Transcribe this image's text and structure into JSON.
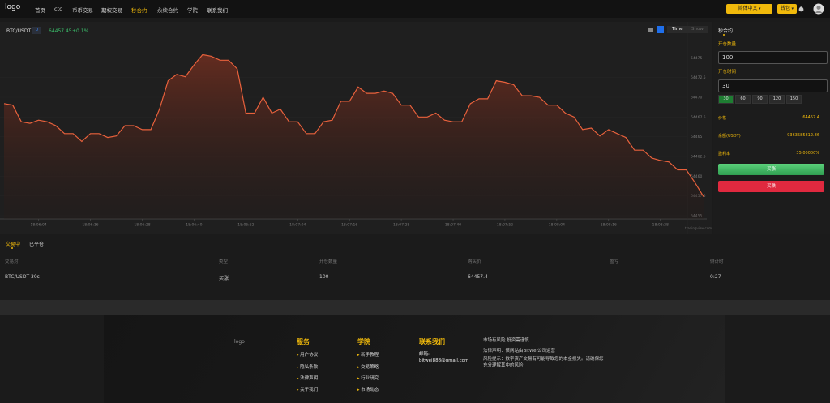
{
  "nav": {
    "logo": "logo",
    "items": [
      "首页",
      "ctc",
      "币币交易",
      "期权交易",
      "秒合约",
      "永续合约",
      "学院",
      "联系我们"
    ],
    "language": "简体中文",
    "wallet": "钱包"
  },
  "chart_data": {
    "type": "line",
    "symbol": "BTC/USDT",
    "badge": "0",
    "last_price": "64457.45",
    "change": "+0.1%",
    "mode_buttons": [
      "Time",
      "Show"
    ],
    "watermark": "tradingview.com",
    "color": "#e8613c",
    "grid": true,
    "categories": [
      null,
      null,
      null,
      null,
      "18:06:04",
      null,
      null,
      null,
      null,
      null,
      "18:06:16",
      null,
      null,
      null,
      null,
      null,
      "18:06:28",
      null,
      null,
      null,
      null,
      null,
      "18:06:40",
      null,
      null,
      null,
      null,
      null,
      "18:06:52",
      null,
      null,
      null,
      null,
      null,
      "18:07:04",
      null,
      null,
      null,
      null,
      null,
      "18:07:16",
      null,
      null,
      null,
      null,
      null,
      "18:07:28",
      null,
      null,
      null,
      null,
      null,
      "18:07:40",
      null,
      null,
      null,
      null,
      null,
      "18:07:52",
      null,
      null,
      null,
      null,
      null,
      "18:08:04",
      null,
      null,
      null,
      null,
      null,
      "18:08:16",
      null,
      null,
      null,
      null,
      null,
      "18:08:28",
      null,
      null,
      null,
      null,
      null
    ],
    "values": [
      64469.2,
      64469.0,
      64466.9,
      64466.7,
      64467.1,
      64466.9,
      64466.4,
      64465.4,
      64465.4,
      64464.4,
      64465.4,
      64465.4,
      64464.9,
      64465.1,
      64466.4,
      64466.4,
      64465.9,
      64465.9,
      64468.5,
      64472.1,
      64472.9,
      64472.6,
      64474.1,
      64475.4,
      64475.2,
      64474.7,
      64474.7,
      64473.6,
      64468.0,
      64468.0,
      64470.0,
      64468.0,
      64468.5,
      64466.9,
      64466.9,
      64465.4,
      64465.4,
      64466.9,
      64467.1,
      64469.5,
      64469.5,
      64471.3,
      64470.5,
      64470.5,
      64470.8,
      64470.5,
      64469.0,
      64469.0,
      64467.5,
      64467.5,
      64468.0,
      64467.1,
      64466.9,
      64466.9,
      64469.2,
      64469.8,
      64469.8,
      64472.1,
      64471.9,
      64471.6,
      64470.2,
      64470.2,
      64470.0,
      64469.0,
      64469.0,
      64468.0,
      64467.5,
      64465.9,
      64466.1,
      64465.1,
      64465.9,
      64465.4,
      64464.9,
      64463.3,
      64463.3,
      64462.3,
      64462.0,
      64461.8,
      64460.8,
      64460.8,
      64459.2,
      64457.4
    ],
    "ylim": [
      64455,
      64477.5
    ],
    "yticks": [
      64455,
      64457.5,
      64460,
      64462.5,
      64465,
      64467.5,
      64470,
      64472.5,
      64475
    ]
  },
  "order_panel": {
    "title": "秒合约",
    "amount_label": "开仓数量",
    "amount": "100",
    "time_label": "开仓时间",
    "time": "30",
    "time_options": [
      "30",
      "60",
      "90",
      "120",
      "150"
    ],
    "rows": [
      {
        "label": "价格",
        "value": "64457.4"
      },
      {
        "label": "余额(USDT)",
        "value": "9363585812.86"
      },
      {
        "label": "盈利率",
        "value": "35.00000%"
      }
    ],
    "buy_up": "买涨",
    "buy_down": "买跌"
  },
  "orders": {
    "tabs": [
      "交易中",
      "已平仓"
    ],
    "headers": [
      "交易对",
      "类型",
      "开仓数量",
      "购买价",
      "盈亏",
      "倒计时"
    ],
    "rows": [
      [
        "BTC/USDT 30s",
        "买涨",
        "100",
        "64457.4",
        "--",
        "0:27"
      ]
    ]
  },
  "footer": {
    "logo": "logo",
    "columns": [
      {
        "title": "服务",
        "links": [
          "用户协议",
          "隐私条款",
          "法律声明",
          "关于我们"
        ]
      },
      {
        "title": "学院",
        "links": [
          "新手教程",
          "交易策略",
          "行业研究",
          "市场动态"
        ]
      }
    ],
    "contact_title": "联系我们",
    "email_label": "邮箱:",
    "email": "bitwei888@gmail.com",
    "notes": [
      "市场有风险 投资需谨慎",
      "法律声明：该网站由BitWei公司运营",
      "风险提示：数字资产交易有可能导致您的本金损失。请确保您充分理解其中的风险"
    ]
  }
}
